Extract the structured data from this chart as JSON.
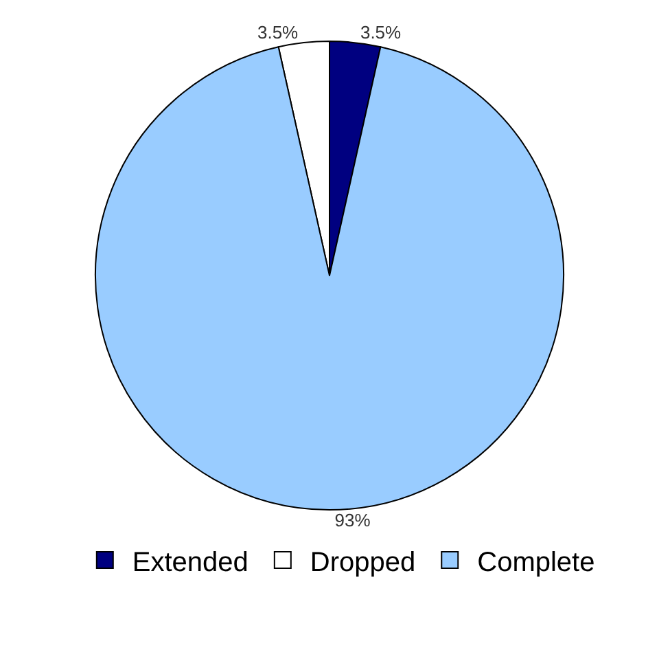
{
  "chart_data": {
    "type": "pie",
    "categories": [
      "Extended",
      "Dropped",
      "Complete"
    ],
    "values": [
      3.5,
      3.5,
      93
    ],
    "value_labels": [
      "3.5%",
      "3.5%",
      "93%"
    ],
    "colors": [
      "#000080",
      "#ffffff",
      "#99ccff"
    ],
    "legend": "bottom"
  }
}
